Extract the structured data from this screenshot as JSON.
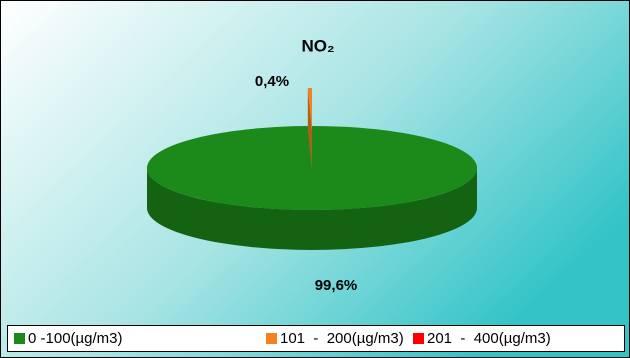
{
  "chart_data": {
    "type": "pie3d",
    "title": "NO₂",
    "categories": [
      "0 -100(µg/m3)",
      "101  -  200(µg/m3)",
      "201  -  400(µg/m3)"
    ],
    "values": [
      99.6,
      0.4,
      0
    ],
    "value_labels": [
      "99,6%",
      "0,4%",
      null
    ],
    "colors": [
      "#1b8a1b",
      "#f58220",
      "#ff0000"
    ],
    "legend": "bottom"
  }
}
